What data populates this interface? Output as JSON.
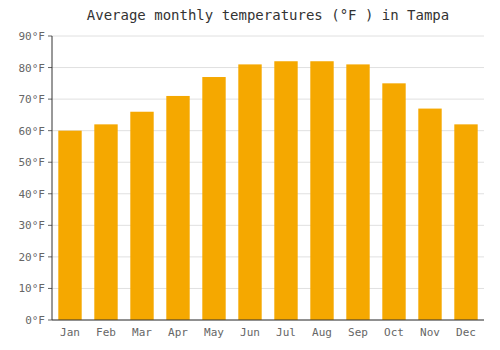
{
  "chart_data": {
    "type": "bar",
    "title": "Average monthly temperatures (°F ) in Tampa",
    "categories": [
      "Jan",
      "Feb",
      "Mar",
      "Apr",
      "May",
      "Jun",
      "Jul",
      "Aug",
      "Sep",
      "Oct",
      "Nov",
      "Dec"
    ],
    "values": [
      60,
      62,
      66,
      71,
      77,
      81,
      82,
      82,
      81,
      75,
      67,
      62
    ],
    "color": "#F5A800",
    "ylim": [
      0,
      90
    ],
    "yticks": [
      {
        "value": 0,
        "label": "0°F"
      },
      {
        "value": 10,
        "label": "10°F"
      },
      {
        "value": 20,
        "label": "20°F"
      },
      {
        "value": 30,
        "label": "30°F"
      },
      {
        "value": 40,
        "label": "40°F"
      },
      {
        "value": 50,
        "label": "50°F"
      },
      {
        "value": 60,
        "label": "60°F"
      },
      {
        "value": 70,
        "label": "70°F"
      },
      {
        "value": 80,
        "label": "80°F"
      },
      {
        "value": 90,
        "label": "90°F"
      }
    ],
    "grid": true
  }
}
